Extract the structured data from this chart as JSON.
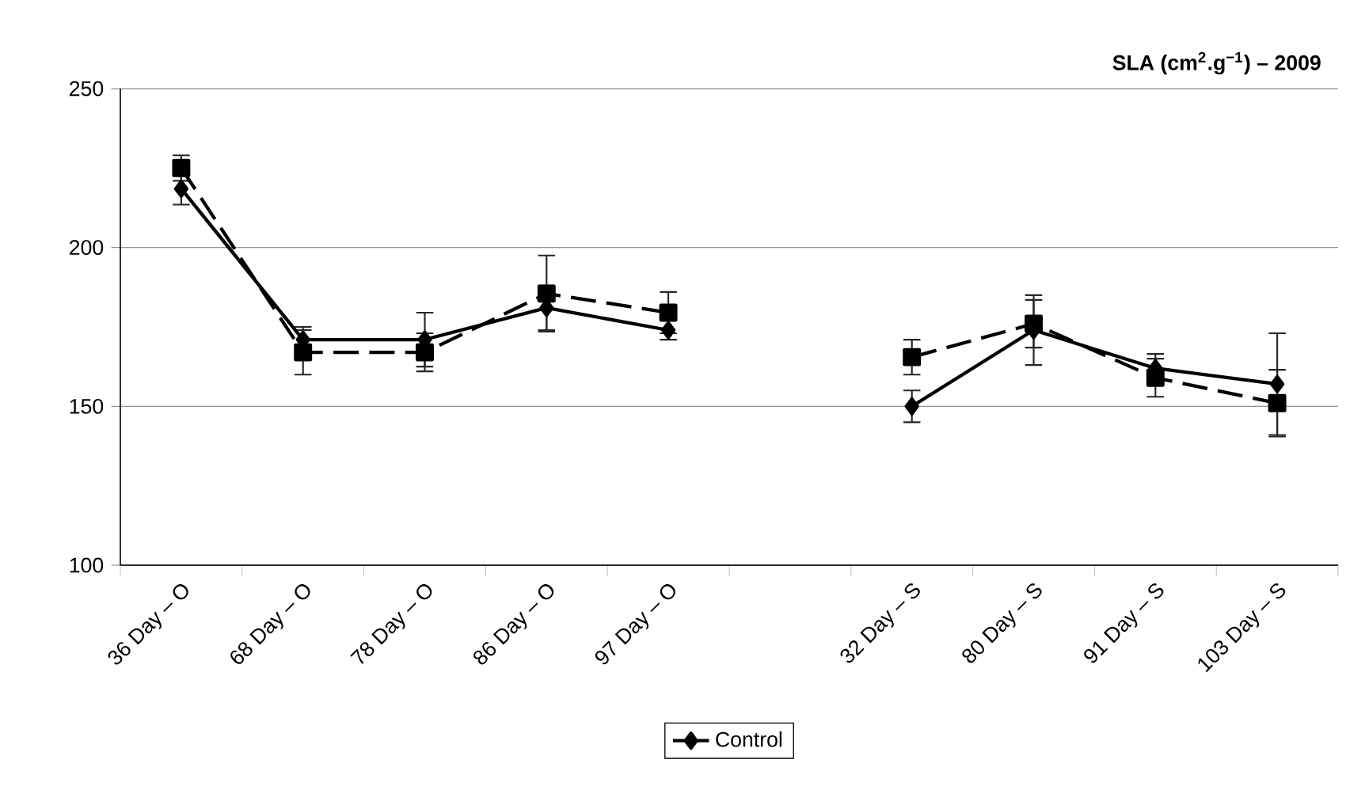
{
  "chart_data": {
    "type": "line",
    "title": "SLA (cm$^{2}$.g$^{−1}$) – 2009",
    "categories": [
      "36 Day – O",
      "68 Day – O",
      "78 Day – O",
      "86 Day – O",
      "97 Day – O",
      null,
      "32 Day – S",
      "80 Day – S",
      "91 Day – S",
      "103 Day – S"
    ],
    "ylim": [
      100,
      250
    ],
    "yticks": [
      100,
      150,
      200,
      250
    ],
    "grid": "y",
    "legend": "bottom",
    "series": [
      {
        "name": "Control",
        "color": "#000000",
        "marker": "diamond",
        "line_style": "solid",
        "values": [
          218.5,
          171,
          171,
          181,
          174,
          null,
          150,
          174,
          162,
          157
        ],
        "errors": [
          5,
          4,
          8.5,
          7,
          3,
          null,
          5,
          11,
          4.5,
          16
        ]
      },
      {
        "color": "#000000",
        "marker": "square",
        "line_style": "dashed",
        "values": [
          225,
          167,
          167,
          185.5,
          179.5,
          null,
          165.5,
          176,
          159,
          151
        ],
        "errors": [
          4,
          7,
          6,
          12,
          6.5,
          null,
          5.5,
          7.5,
          6,
          10.5
        ]
      }
    ]
  }
}
